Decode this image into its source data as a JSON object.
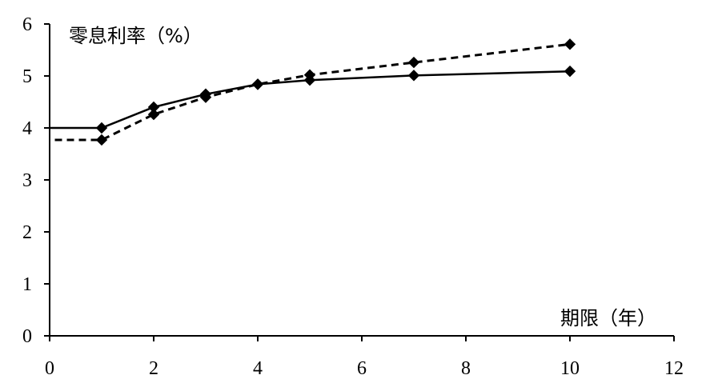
{
  "chart_data": {
    "type": "line",
    "ylabel": "零息利率（%）",
    "xlabel": "期限（年）",
    "xlim": [
      0,
      12
    ],
    "ylim": [
      0,
      6
    ],
    "xticks": [
      0,
      2,
      4,
      6,
      8,
      10,
      12
    ],
    "yticks": [
      0,
      1,
      2,
      3,
      4,
      5,
      6
    ],
    "grid": false,
    "legend": "none",
    "series": [
      {
        "style": "solid",
        "color": "#000000",
        "marker": "diamond",
        "x": [
          1,
          2,
          3,
          4,
          5,
          7,
          10
        ],
        "y": [
          4.0,
          4.4,
          4.65,
          4.84,
          4.92,
          5.01,
          5.09
        ],
        "flat_start": {
          "x": 0,
          "y": 4.0
        }
      },
      {
        "style": "dashed",
        "color": "#000000",
        "marker": "diamond",
        "x": [
          1,
          2,
          3,
          4,
          5,
          7,
          10
        ],
        "y": [
          3.77,
          4.26,
          4.59,
          4.84,
          5.02,
          5.26,
          5.61
        ],
        "flat_start": {
          "x": 0.1,
          "y": 3.77
        }
      }
    ]
  }
}
